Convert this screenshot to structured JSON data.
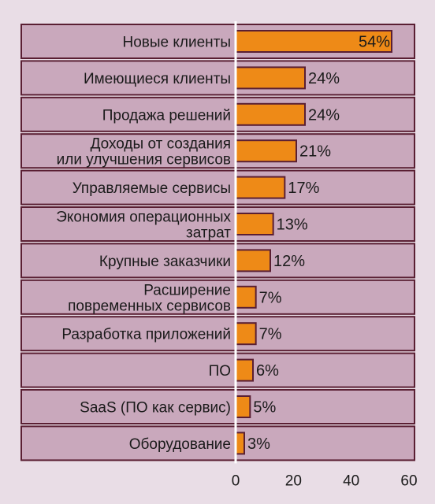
{
  "chart_data": {
    "type": "bar",
    "orientation": "horizontal",
    "categories": [
      [
        "Новые клиенты"
      ],
      [
        "Имеющиеся клиенты"
      ],
      [
        "Продажа решений"
      ],
      [
        "Доходы от создания",
        "или улучшения сервисов"
      ],
      [
        "Управляемые сервисы"
      ],
      [
        "Экономия операционных",
        "затрат"
      ],
      [
        "Крупные заказчики"
      ],
      [
        "Расширение",
        "повременных сервисов"
      ],
      [
        "Разработка приложений"
      ],
      [
        "ПО"
      ],
      [
        "SaaS (ПО как сервис)"
      ],
      [
        "Оборудование"
      ]
    ],
    "values": [
      54,
      24,
      24,
      21,
      17,
      13,
      12,
      7,
      7,
      6,
      5,
      3
    ],
    "value_labels": [
      "54%",
      "24%",
      "24%",
      "21%",
      "17%",
      "13%",
      "12%",
      "7%",
      "7%",
      "6%",
      "5%",
      "3%"
    ],
    "xlim": [
      0,
      60
    ],
    "xticks": [
      "0",
      "20",
      "40",
      "60"
    ],
    "grid": false,
    "colors": {
      "bar": "#ee8a17",
      "bar_stroke": "#5a1f33",
      "panel": "#c9a8bc",
      "panel_stroke": "#5a1f33",
      "axis_line": "#ffffff",
      "background": "#e9dde6"
    }
  }
}
